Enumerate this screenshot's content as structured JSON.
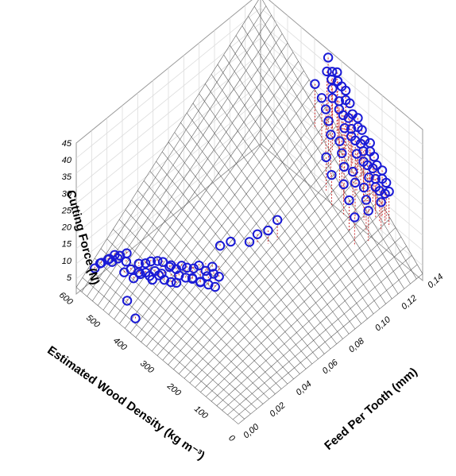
{
  "chart_data": {
    "type": "scatter",
    "plot_kind": "3d-scatter-with-fitted-surface",
    "title": "",
    "xlabel": "Estimated Wood Density (kg m⁻³)",
    "ylabel": "Feed Per Tooth (mm)",
    "zlabel": "Cutting Force (N)",
    "x_ticks": [
      "0",
      "100",
      "200",
      "300",
      "400",
      "500",
      "600"
    ],
    "y_ticks": [
      "0,00",
      "0,02",
      "0,04",
      "0,06",
      "0,08",
      "0,10",
      "0,12",
      "0,14"
    ],
    "z_ticks": [
      "5",
      "10",
      "15",
      "20",
      "25",
      "30",
      "35",
      "40",
      "45"
    ],
    "xlim": [
      0,
      600
    ],
    "ylim": [
      0,
      0.14
    ],
    "zlim": [
      0,
      45
    ],
    "surface": {
      "formula": "z = 0.0005 * x * y * 600 / 0.14 * 0.0005 + 0.5 * x/600 * y/0.14 * 42",
      "grid": true
    },
    "marker": {
      "shape": "open-circle",
      "color": "#1a1ad6",
      "residual_color": "#cc3333"
    },
    "series": [
      {
        "values": [
          {
            "x": 590,
            "y": 0.012,
            "z": 4.5
          },
          {
            "x": 585,
            "y": 0.016,
            "z": 5.2
          },
          {
            "x": 580,
            "y": 0.014,
            "z": 6.0
          },
          {
            "x": 575,
            "y": 0.02,
            "z": 5.8
          },
          {
            "x": 570,
            "y": 0.018,
            "z": 6.5
          },
          {
            "x": 565,
            "y": 0.022,
            "z": 7.0
          },
          {
            "x": 560,
            "y": 0.019,
            "z": 6.2
          },
          {
            "x": 555,
            "y": 0.024,
            "z": 6.8
          },
          {
            "x": 548,
            "y": 0.021,
            "z": 7.4
          },
          {
            "x": 540,
            "y": 0.026,
            "z": 7.9
          },
          {
            "x": 532,
            "y": 0.024,
            "z": 6.6
          },
          {
            "x": 520,
            "y": 0.02,
            "z": 5.5
          },
          {
            "x": 510,
            "y": 0.023,
            "z": 6.1
          },
          {
            "x": 500,
            "y": 0.027,
            "z": 7.2
          },
          {
            "x": 495,
            "y": 0.022,
            "z": 4.8
          },
          {
            "x": 490,
            "y": 0.025,
            "z": 5.9
          },
          {
            "x": 485,
            "y": 0.029,
            "z": 7.7
          },
          {
            "x": 480,
            "y": 0.024,
            "z": 6.4
          },
          {
            "x": 475,
            "y": 0.031,
            "z": 8.3
          },
          {
            "x": 470,
            "y": 0.026,
            "z": 6.9
          },
          {
            "x": 465,
            "y": 0.028,
            "z": 5.6
          },
          {
            "x": 460,
            "y": 0.033,
            "z": 8.8
          },
          {
            "x": 455,
            "y": 0.03,
            "z": 7.1
          },
          {
            "x": 450,
            "y": 0.027,
            "z": 5.8
          },
          {
            "x": 445,
            "y": 0.034,
            "z": 9.2
          },
          {
            "x": 440,
            "y": 0.032,
            "z": 6.7
          },
          {
            "x": 435,
            "y": 0.029,
            "z": 7.5
          },
          {
            "x": 430,
            "y": 0.036,
            "z": 8.1
          },
          {
            "x": 425,
            "y": 0.031,
            "z": 6.2
          },
          {
            "x": 420,
            "y": 0.035,
            "z": 9.6
          },
          {
            "x": 415,
            "y": 0.038,
            "z": 7.8
          },
          {
            "x": 410,
            "y": 0.033,
            "z": 5.9
          },
          {
            "x": 405,
            "y": 0.04,
            "z": 8.9
          },
          {
            "x": 400,
            "y": 0.037,
            "z": 7.3
          },
          {
            "x": 395,
            "y": 0.034,
            "z": 6.4
          },
          {
            "x": 390,
            "y": 0.041,
            "z": 9.0
          },
          {
            "x": 385,
            "y": 0.039,
            "z": 7.0
          },
          {
            "x": 380,
            "y": 0.044,
            "z": 8.5
          },
          {
            "x": 375,
            "y": 0.042,
            "z": 6.6
          },
          {
            "x": 370,
            "y": 0.046,
            "z": 9.4
          },
          {
            "x": 365,
            "y": 0.04,
            "z": 7.7
          },
          {
            "x": 360,
            "y": 0.045,
            "z": 5.4
          },
          {
            "x": 355,
            "y": 0.048,
            "z": 8.2
          },
          {
            "x": 350,
            "y": 0.043,
            "z": 6.9
          },
          {
            "x": 345,
            "y": 0.047,
            "z": 7.6
          },
          {
            "x": 340,
            "y": 0.05,
            "z": 9.8
          },
          {
            "x": 335,
            "y": 0.046,
            "z": 6.1
          },
          {
            "x": 330,
            "y": 0.049,
            "z": 8.7
          },
          {
            "x": 325,
            "y": 0.052,
            "z": 7.2
          },
          {
            "x": 320,
            "y": 0.048,
            "z": 5.8
          },
          {
            "x": 470,
            "y": 0.012,
            "z": 3.0
          },
          {
            "x": 420,
            "y": 0.008,
            "z": 2.4
          },
          {
            "x": 360,
            "y": 0.06,
            "z": 11.5
          },
          {
            "x": 340,
            "y": 0.064,
            "z": 12.8
          },
          {
            "x": 300,
            "y": 0.07,
            "z": 13.5
          },
          {
            "x": 290,
            "y": 0.074,
            "z": 15.2
          },
          {
            "x": 270,
            "y": 0.078,
            "z": 16.4
          },
          {
            "x": 260,
            "y": 0.083,
            "z": 18.6
          }
        ]
      },
      {
        "values": [
          {
            "x": 340,
            "y": 0.138,
            "z": 44.0
          },
          {
            "x": 330,
            "y": 0.135,
            "z": 41.5
          },
          {
            "x": 325,
            "y": 0.138,
            "z": 40.8
          },
          {
            "x": 318,
            "y": 0.136,
            "z": 39.6
          },
          {
            "x": 312,
            "y": 0.139,
            "z": 41.2
          },
          {
            "x": 305,
            "y": 0.134,
            "z": 38.4
          },
          {
            "x": 300,
            "y": 0.137,
            "z": 40.0
          },
          {
            "x": 295,
            "y": 0.132,
            "z": 36.9
          },
          {
            "x": 290,
            "y": 0.138,
            "z": 38.8
          },
          {
            "x": 285,
            "y": 0.135,
            "z": 35.7
          },
          {
            "x": 280,
            "y": 0.139,
            "z": 37.9
          },
          {
            "x": 275,
            "y": 0.133,
            "z": 34.6
          },
          {
            "x": 270,
            "y": 0.137,
            "z": 36.4
          },
          {
            "x": 265,
            "y": 0.134,
            "z": 33.2
          },
          {
            "x": 260,
            "y": 0.138,
            "z": 35.8
          },
          {
            "x": 255,
            "y": 0.136,
            "z": 32.4
          },
          {
            "x": 250,
            "y": 0.132,
            "z": 31.0
          },
          {
            "x": 245,
            "y": 0.137,
            "z": 33.9
          },
          {
            "x": 240,
            "y": 0.135,
            "z": 30.5
          },
          {
            "x": 235,
            "y": 0.139,
            "z": 32.8
          },
          {
            "x": 230,
            "y": 0.133,
            "z": 29.6
          },
          {
            "x": 225,
            "y": 0.137,
            "z": 31.4
          },
          {
            "x": 220,
            "y": 0.134,
            "z": 28.7
          },
          {
            "x": 215,
            "y": 0.138,
            "z": 30.9
          },
          {
            "x": 210,
            "y": 0.136,
            "z": 27.8
          },
          {
            "x": 205,
            "y": 0.132,
            "z": 26.4
          },
          {
            "x": 200,
            "y": 0.137,
            "z": 29.2
          },
          {
            "x": 195,
            "y": 0.135,
            "z": 26.9
          },
          {
            "x": 190,
            "y": 0.139,
            "z": 28.4
          },
          {
            "x": 185,
            "y": 0.133,
            "z": 25.1
          },
          {
            "x": 180,
            "y": 0.137,
            "z": 27.2
          },
          {
            "x": 175,
            "y": 0.134,
            "z": 24.4
          },
          {
            "x": 170,
            "y": 0.138,
            "z": 26.0
          },
          {
            "x": 165,
            "y": 0.136,
            "z": 23.5
          },
          {
            "x": 160,
            "y": 0.132,
            "z": 22.4
          },
          {
            "x": 155,
            "y": 0.137,
            "z": 24.8
          },
          {
            "x": 150,
            "y": 0.135,
            "z": 21.7
          },
          {
            "x": 145,
            "y": 0.139,
            "z": 23.3
          },
          {
            "x": 140,
            "y": 0.133,
            "z": 20.6
          },
          {
            "x": 135,
            "y": 0.137,
            "z": 22.1
          },
          {
            "x": 130,
            "y": 0.134,
            "z": 19.8
          },
          {
            "x": 125,
            "y": 0.138,
            "z": 21.3
          },
          {
            "x": 120,
            "y": 0.136,
            "z": 19.0
          },
          {
            "x": 115,
            "y": 0.132,
            "z": 18.1
          },
          {
            "x": 110,
            "y": 0.137,
            "z": 20.0
          },
          {
            "x": 280,
            "y": 0.126,
            "z": 33.0
          },
          {
            "x": 262,
            "y": 0.124,
            "z": 30.8
          },
          {
            "x": 244,
            "y": 0.127,
            "z": 29.1
          },
          {
            "x": 226,
            "y": 0.125,
            "z": 27.4
          },
          {
            "x": 208,
            "y": 0.123,
            "z": 25.2
          },
          {
            "x": 190,
            "y": 0.126,
            "z": 24.0
          },
          {
            "x": 172,
            "y": 0.124,
            "z": 22.6
          },
          {
            "x": 154,
            "y": 0.127,
            "z": 21.4
          },
          {
            "x": 136,
            "y": 0.125,
            "z": 19.6
          },
          {
            "x": 118,
            "y": 0.123,
            "z": 18.2
          },
          {
            "x": 250,
            "y": 0.118,
            "z": 26.8
          },
          {
            "x": 220,
            "y": 0.116,
            "z": 24.2
          },
          {
            "x": 190,
            "y": 0.119,
            "z": 22.5
          },
          {
            "x": 160,
            "y": 0.117,
            "z": 20.4
          },
          {
            "x": 130,
            "y": 0.115,
            "z": 18.0
          },
          {
            "x": 320,
            "y": 0.129,
            "z": 36.2
          },
          {
            "x": 300,
            "y": 0.128,
            "z": 34.5
          },
          {
            "x": 350,
            "y": 0.13,
            "z": 38.0
          }
        ]
      }
    ]
  }
}
